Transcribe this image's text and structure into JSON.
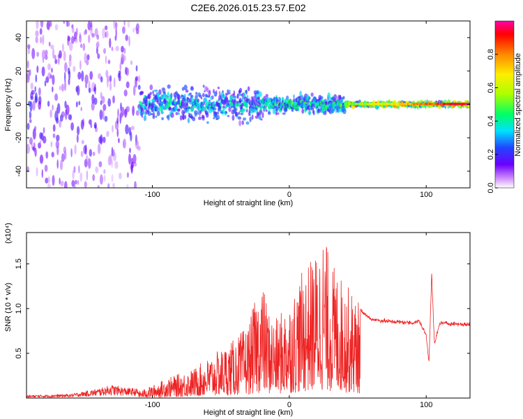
{
  "title": "C2E6.2026.015.23.57.E02",
  "colorbar": {
    "label": "Normalized spectral amplitude",
    "ticks": [
      "0.0",
      "0.2",
      "0.4",
      "0.6",
      "0.8"
    ],
    "tick_values": [
      0.0,
      0.2,
      0.4,
      0.6,
      0.8
    ],
    "range": [
      0,
      1
    ],
    "colors": [
      "#ffffff",
      "#cc88ff",
      "#6a00ff",
      "#2244ff",
      "#00e0ff",
      "#00ff66",
      "#aaff00",
      "#ffee00",
      "#ff8800",
      "#ff0000",
      "#ff00aa"
    ]
  },
  "chart_data": [
    {
      "type": "heatmap",
      "title": "C2E6.2026.015.23.57.E02",
      "xlabel": "Height of straight line (km)",
      "ylabel": "Frequency (Hz)",
      "xlim": [
        -192,
        132
      ],
      "ylim": [
        -50,
        50
      ],
      "xticks": [
        -100,
        0,
        100
      ],
      "xtick_labels": [
        "-100",
        "0",
        "100"
      ],
      "yticks": [
        -40,
        -20,
        0,
        20,
        40
      ],
      "ytick_labels": [
        "-40",
        "-20",
        "0",
        "20",
        "40"
      ],
      "colorscale": "Normalized spectral amplitude",
      "description_bands": [
        {
          "x_range": [
            -192,
            -110
          ],
          "freq_spread": 50,
          "amplitude": 0.15
        },
        {
          "x_range": [
            -110,
            -20
          ],
          "freq_spread": 15,
          "amplitude": 0.3
        },
        {
          "x_range": [
            -20,
            40
          ],
          "freq_spread": 8,
          "amplitude": 0.35
        },
        {
          "x_range": [
            40,
            132
          ],
          "freq_spread": 2,
          "amplitude": 0.6
        }
      ]
    },
    {
      "type": "line",
      "xlabel": "Height of straight line (km)",
      "ylabel": "SNR (10 * v/v)",
      "y_scale_label": "(x10⁴)",
      "xlim": [
        -192,
        132
      ],
      "ylim": [
        0,
        1.85
      ],
      "xticks": [
        -100,
        0,
        100
      ],
      "xtick_labels": [
        "-100",
        "0",
        "100"
      ],
      "yticks": [
        0.5,
        1.0,
        1.5
      ],
      "ytick_labels": [
        "0.5",
        "1.0",
        "1.5"
      ],
      "series": [
        {
          "name": "SNR",
          "color": "#ee2222",
          "x": [
            -192,
            -160,
            -140,
            -130,
            -120,
            -110,
            -100,
            -90,
            -80,
            -70,
            -60,
            -50,
            -40,
            -30,
            -25,
            -20,
            -15,
            -10,
            0,
            10,
            20,
            25,
            30,
            40,
            50,
            60,
            70,
            80,
            90,
            95,
            100,
            102,
            104,
            106,
            110,
            120,
            132
          ],
          "y": [
            0.02,
            0.03,
            0.07,
            0.1,
            0.08,
            0.07,
            0.13,
            0.2,
            0.25,
            0.3,
            0.4,
            0.5,
            0.6,
            0.75,
            1.0,
            1.2,
            0.9,
            0.8,
            1.0,
            1.3,
            1.5,
            1.7,
            1.4,
            1.2,
            1.0,
            0.88,
            0.86,
            0.85,
            0.84,
            0.86,
            0.7,
            0.4,
            1.4,
            0.6,
            0.84,
            0.83,
            0.82
          ]
        }
      ]
    }
  ]
}
